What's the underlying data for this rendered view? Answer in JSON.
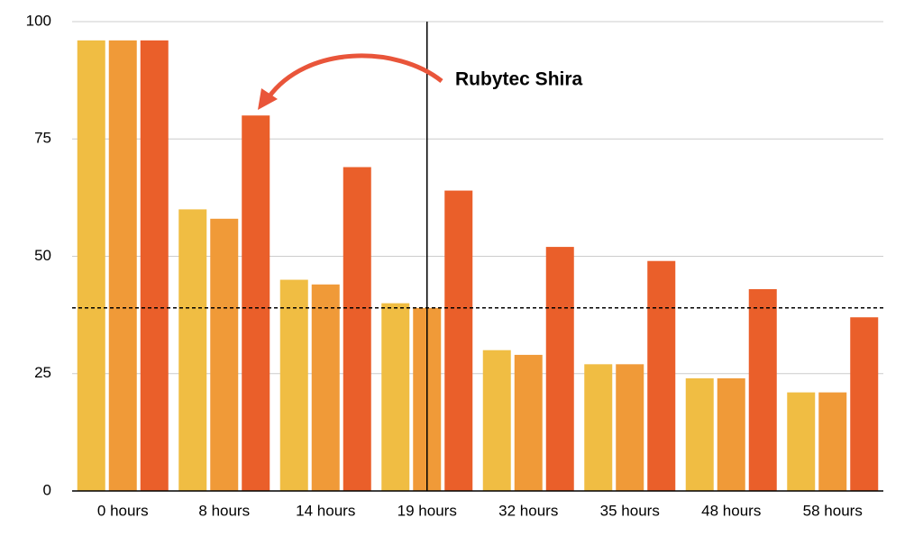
{
  "chart_data": {
    "type": "bar",
    "annotation": "Rubytec Shira",
    "annotation_color": "#e9553a",
    "categories": [
      "0 hours",
      "8 hours",
      "14 hours",
      "19 hours",
      "32 hours",
      "35 hours",
      "48 hours",
      "58 hours"
    ],
    "series": [
      {
        "color": "#f0bd43",
        "values": [
          96,
          60,
          45,
          40,
          30,
          27,
          24,
          21
        ]
      },
      {
        "color": "#f09a38",
        "values": [
          96,
          58,
          44,
          39,
          29,
          27,
          24,
          21
        ]
      },
      {
        "color": "#ea5f2a",
        "values": [
          96,
          80,
          69,
          64,
          52,
          49,
          43,
          37
        ]
      }
    ],
    "ylim": [
      0,
      100
    ],
    "yticks": [
      0,
      25,
      50,
      75,
      100
    ],
    "grid": true,
    "hline": 39,
    "vline_category": "19 hours"
  }
}
